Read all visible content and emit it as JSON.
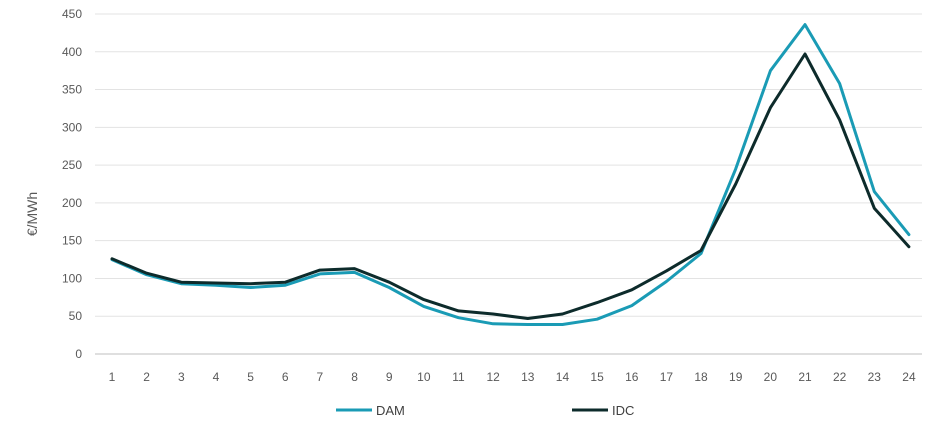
{
  "chart_data": {
    "type": "line",
    "title": "",
    "xlabel": "",
    "ylabel": "€/MWh",
    "ylim": [
      0,
      450
    ],
    "yticks": [
      0,
      50,
      100,
      150,
      200,
      250,
      300,
      350,
      400,
      450
    ],
    "grid": true,
    "legend_position": "bottom",
    "x": [
      1,
      2,
      3,
      4,
      5,
      6,
      7,
      8,
      9,
      10,
      11,
      12,
      13,
      14,
      15,
      16,
      17,
      18,
      19,
      20,
      21,
      22,
      23,
      24
    ],
    "series": [
      {
        "name": "DAM",
        "color": "#1a9bb5",
        "values": [
          125,
          105,
          93,
          91,
          88,
          91,
          106,
          108,
          88,
          63,
          48,
          40,
          39,
          39,
          46,
          64,
          96,
          133,
          245,
          375,
          436,
          358,
          215,
          158
        ]
      },
      {
        "name": "IDC",
        "color": "#0d2b2b",
        "values": [
          126,
          107,
          95,
          94,
          93,
          95,
          111,
          113,
          95,
          72,
          57,
          53,
          47,
          53,
          68,
          85,
          110,
          137,
          225,
          326,
          397,
          310,
          193,
          142
        ]
      }
    ]
  }
}
